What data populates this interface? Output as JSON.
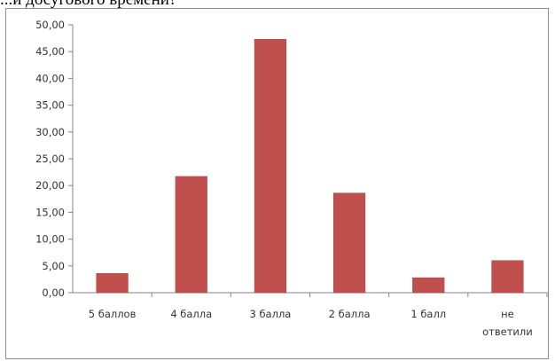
{
  "caption": "...и досугового времени?",
  "chart_data": {
    "type": "bar",
    "categories": [
      "5 баллов",
      "4 балла",
      "3 балла",
      "2 балла",
      "1 балл",
      "не ответили"
    ],
    "category_lines": [
      [
        "5 баллов"
      ],
      [
        "4 балла"
      ],
      [
        "3 балла"
      ],
      [
        "2 балла"
      ],
      [
        "1 балл"
      ],
      [
        "не",
        "ответили"
      ]
    ],
    "values": [
      3.6,
      21.7,
      47.3,
      18.6,
      2.8,
      6.0
    ],
    "ylim": [
      0,
      50
    ],
    "yticks": [
      0,
      5,
      10,
      15,
      20,
      25,
      30,
      35,
      40,
      45,
      50
    ],
    "ytick_labels": [
      "0,00",
      "5,00",
      "10,00",
      "15,00",
      "20,00",
      "25,00",
      "30,00",
      "35,00",
      "40,00",
      "45,00",
      "50,00"
    ],
    "grid": false,
    "legend": "none",
    "bar_color": "#c0504d",
    "title": "",
    "xlabel": "",
    "ylabel": ""
  }
}
